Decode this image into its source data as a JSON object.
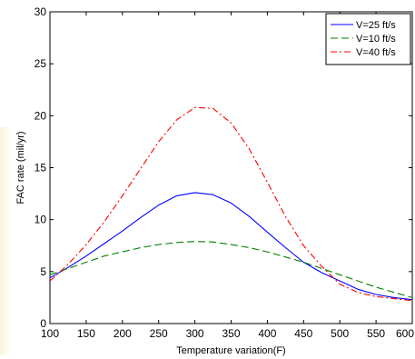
{
  "chart_data": {
    "type": "line",
    "title": "",
    "xlabel": "Temperature variation(F)",
    "ylabel": "FAC rate (mil/yr)",
    "xlim": [
      100,
      600
    ],
    "ylim": [
      0,
      30
    ],
    "xticks": [
      "100",
      "150",
      "200",
      "250",
      "300",
      "350",
      "400",
      "450",
      "500",
      "550",
      "600"
    ],
    "yticks": [
      "0",
      "5",
      "10",
      "15",
      "20",
      "25",
      "30"
    ],
    "grid": false,
    "legend_position": "top-right",
    "x": [
      100,
      125,
      150,
      175,
      200,
      225,
      250,
      275,
      300,
      325,
      350,
      375,
      400,
      425,
      450,
      475,
      500,
      525,
      550,
      575,
      600
    ],
    "series": [
      {
        "name": "V=25 ft/s",
        "color": "#0000ff",
        "dash": "solid",
        "values": [
          4.4,
          5.4,
          6.5,
          7.7,
          8.9,
          10.2,
          11.4,
          12.3,
          12.6,
          12.4,
          11.6,
          10.3,
          8.8,
          7.3,
          5.9,
          4.9,
          4.1,
          3.3,
          2.8,
          2.5,
          2.3
        ]
      },
      {
        "name": "V=10 ft/s",
        "color": "#008000",
        "dash": "dashed",
        "values": [
          4.7,
          5.3,
          5.9,
          6.5,
          6.9,
          7.3,
          7.6,
          7.8,
          7.9,
          7.85,
          7.6,
          7.3,
          6.9,
          6.4,
          5.9,
          5.3,
          4.7,
          4.1,
          3.5,
          3.0,
          2.5
        ]
      },
      {
        "name": "V=40 ft/s",
        "color": "#ff0000",
        "dash": "dashdot",
        "values": [
          4.1,
          5.7,
          7.6,
          9.8,
          12.3,
          14.9,
          17.5,
          19.6,
          20.8,
          20.7,
          19.3,
          16.8,
          13.6,
          10.3,
          7.5,
          5.5,
          3.8,
          3.0,
          2.6,
          2.4,
          2.2
        ]
      }
    ]
  }
}
